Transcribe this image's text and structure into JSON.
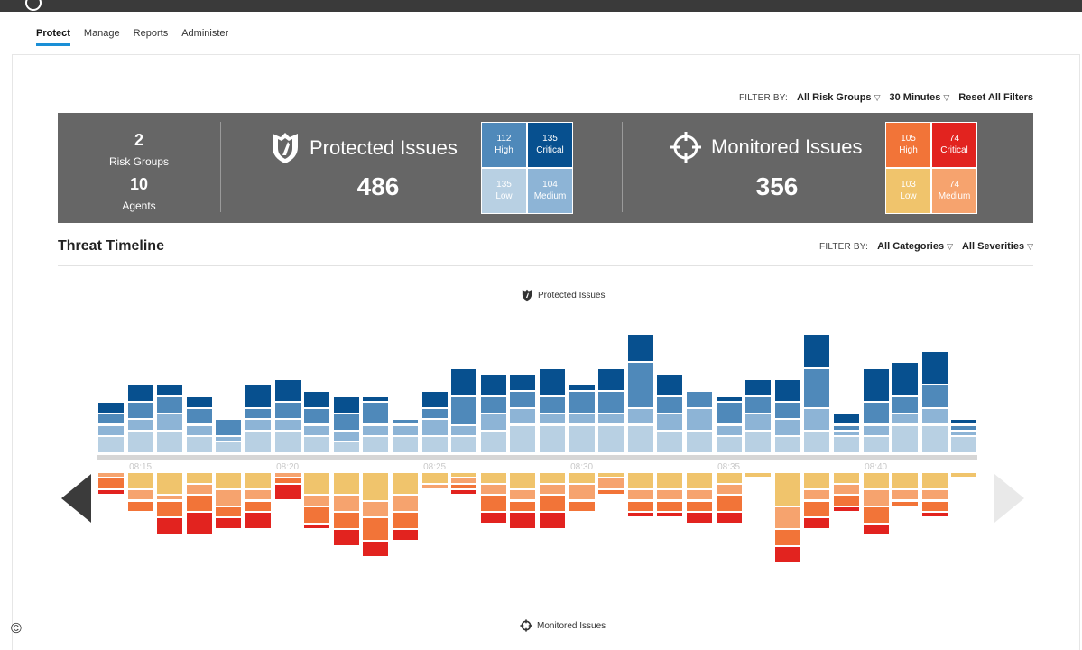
{
  "nav": {
    "tabs": [
      {
        "label": "Protect",
        "active": true
      },
      {
        "label": "Manage"
      },
      {
        "label": "Reports"
      },
      {
        "label": "Administer"
      }
    ]
  },
  "top_filter": {
    "label": "FILTER BY:",
    "risk_groups": "All Risk Groups",
    "time": "30 Minutes",
    "reset": "Reset All Filters"
  },
  "summary": {
    "risk_groups_count": "2",
    "risk_groups_label": "Risk Groups",
    "agents_count": "10",
    "agents_label": "Agents",
    "protected": {
      "title": "Protected Issues",
      "total": "486",
      "high": {
        "value": "112",
        "label": "High"
      },
      "critical": {
        "value": "135",
        "label": "Critical"
      },
      "low": {
        "value": "135",
        "label": "Low"
      },
      "medium": {
        "value": "104",
        "label": "Medium"
      }
    },
    "monitored": {
      "title": "Monitored Issues",
      "total": "356",
      "high": {
        "value": "105",
        "label": "High"
      },
      "critical": {
        "value": "74",
        "label": "Critical"
      },
      "low": {
        "value": "103",
        "label": "Low"
      },
      "medium": {
        "value": "74",
        "label": "Medium"
      }
    }
  },
  "timeline": {
    "title": "Threat Timeline",
    "filter_label": "FILTER BY:",
    "categories": "All Categories",
    "severities": "All Severities",
    "protected_legend": "Protected Issues",
    "monitored_legend": "Monitored Issues"
  },
  "colors": {
    "protected_low": "#b8d0e3",
    "protected_medium": "#8db4d6",
    "protected_high": "#4f89ba",
    "protected_critical": "#07508f",
    "monitored_low": "#f0c46c",
    "monitored_medium": "#f6a36e",
    "monitored_high": "#f27438",
    "monitored_critical": "#e2231f"
  },
  "chart_data": {
    "type": "bar",
    "x_tick_labels": [
      "08:15",
      "08:20",
      "08:25",
      "08:30",
      "08:35",
      "08:40"
    ],
    "protected_series_order": [
      "Low",
      "Medium",
      "High",
      "Critical"
    ],
    "monitored_series_order": [
      "Low",
      "Medium",
      "High",
      "Critical"
    ],
    "protected": [
      [
        3,
        2,
        2,
        2
      ],
      [
        4,
        2,
        3,
        3
      ],
      [
        4,
        3,
        3,
        2
      ],
      [
        3,
        2,
        3,
        2
      ],
      [
        2,
        1,
        3,
        0
      ],
      [
        4,
        2,
        2,
        4
      ],
      [
        4,
        2,
        3,
        4
      ],
      [
        3,
        2,
        3,
        3
      ],
      [
        2,
        2,
        3,
        3
      ],
      [
        3,
        2,
        4,
        1
      ],
      [
        3,
        2,
        1,
        0
      ],
      [
        3,
        3,
        2,
        3
      ],
      [
        3,
        2,
        5,
        5
      ],
      [
        4,
        3,
        3,
        4
      ],
      [
        5,
        3,
        3,
        3
      ],
      [
        5,
        2,
        3,
        5
      ],
      [
        5,
        2,
        4,
        1
      ],
      [
        5,
        2,
        4,
        4
      ],
      [
        5,
        3,
        8,
        5
      ],
      [
        4,
        3,
        3,
        4
      ],
      [
        4,
        4,
        3,
        0
      ],
      [
        3,
        2,
        4,
        1
      ],
      [
        4,
        3,
        3,
        3
      ],
      [
        3,
        3,
        3,
        4
      ],
      [
        4,
        4,
        7,
        6
      ],
      [
        3,
        1,
        1,
        2
      ],
      [
        3,
        2,
        4,
        6
      ],
      [
        5,
        2,
        3,
        6
      ],
      [
        5,
        3,
        4,
        6
      ],
      [
        3,
        1,
        1,
        1
      ]
    ],
    "monitored": [
      [
        0,
        1,
        2,
        1
      ],
      [
        3,
        2,
        2,
        0
      ],
      [
        4,
        1,
        3,
        3
      ],
      [
        2,
        2,
        3,
        4
      ],
      [
        3,
        3,
        2,
        2
      ],
      [
        3,
        2,
        2,
        3
      ],
      [
        0,
        1,
        1,
        3
      ],
      [
        4,
        2,
        3,
        1
      ],
      [
        4,
        3,
        3,
        3
      ],
      [
        5,
        3,
        4,
        3
      ],
      [
        4,
        3,
        3,
        2
      ],
      [
        2,
        1,
        0,
        0
      ],
      [
        1,
        1,
        1,
        1
      ],
      [
        2,
        2,
        3,
        2
      ],
      [
        3,
        2,
        2,
        3
      ],
      [
        2,
        2,
        3,
        3
      ],
      [
        2,
        3,
        2,
        0
      ],
      [
        1,
        2,
        1,
        0
      ],
      [
        3,
        2,
        2,
        1
      ],
      [
        3,
        2,
        2,
        1
      ],
      [
        3,
        2,
        2,
        2
      ],
      [
        2,
        2,
        3,
        2
      ],
      [
        1,
        0,
        0,
        0
      ],
      [
        6,
        4,
        3,
        3
      ],
      [
        3,
        2,
        3,
        2
      ],
      [
        2,
        2,
        2,
        1
      ],
      [
        3,
        3,
        3,
        2
      ],
      [
        3,
        2,
        1,
        0
      ],
      [
        3,
        2,
        2,
        1
      ],
      [
        1,
        0,
        0,
        0
      ]
    ]
  }
}
